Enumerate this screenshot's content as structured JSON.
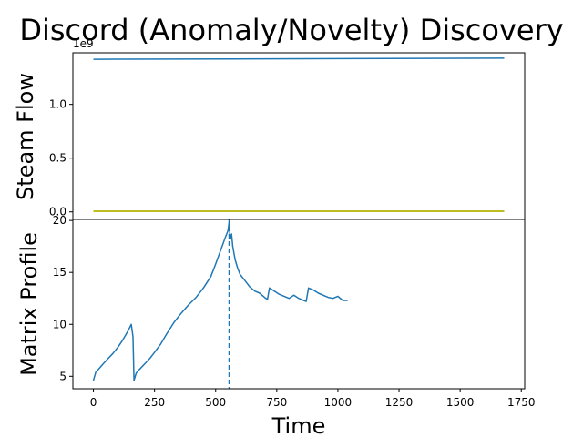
{
  "chart_data": {
    "type": "line",
    "title": "Discord (Anomaly/Novelty) Discovery",
    "subplots": [
      {
        "name": "steam-flow",
        "ylabel": "Steam Flow",
        "offset_label": "1e9",
        "xlim": [
          -84,
          1764
        ],
        "ylim": [
          -70000000.0,
          1480000000.0
        ],
        "yticks": [
          {
            "value": 0.0,
            "label": "0.0"
          },
          {
            "value": 500000000.0,
            "label": "0.5"
          },
          {
            "value": 1000000000.0,
            "label": "1.0"
          }
        ],
        "series": [
          {
            "color": "#1f77b4",
            "x": [
              0,
              1680
            ],
            "y": [
              1420000000.0,
              1430000000.0
            ]
          },
          {
            "color": "#bcbd22",
            "x": [
              0,
              1680
            ],
            "y": [
              6000000.0,
              6000000.0
            ]
          }
        ]
      },
      {
        "name": "matrix-profile",
        "ylabel": "Matrix Profile",
        "xlabel": "Time",
        "xlim": [
          -84,
          1764
        ],
        "ylim": [
          3.8,
          20.1
        ],
        "discord_x": 555,
        "discord_color": "#1f77b4",
        "xticks": [
          {
            "value": 0,
            "label": "0"
          },
          {
            "value": 250,
            "label": "250"
          },
          {
            "value": 500,
            "label": "500"
          },
          {
            "value": 750,
            "label": "750"
          },
          {
            "value": 1000,
            "label": "1000"
          },
          {
            "value": 1250,
            "label": "1250"
          },
          {
            "value": 1500,
            "label": "1500"
          },
          {
            "value": 1750,
            "label": "1750"
          }
        ],
        "yticks": [
          {
            "value": 5,
            "label": "5"
          },
          {
            "value": 10,
            "label": "10"
          },
          {
            "value": 15,
            "label": "15"
          },
          {
            "value": 20,
            "label": "20"
          }
        ],
        "series": [
          {
            "color": "#1f77b4",
            "x": [
              0,
              10,
              25,
              40,
              60,
              80,
              100,
              120,
              140,
              155,
              162,
              166,
              175,
              190,
              210,
              230,
              250,
              275,
              300,
              330,
              360,
              390,
              420,
              450,
              480,
              500,
              520,
              540,
              550,
              555,
              560,
              565,
              570,
              580,
              590,
              600,
              620,
              640,
              660,
              680,
              700,
              712,
              720,
              740,
              760,
              780,
              800,
              820,
              840,
              860,
              870,
              880,
              900,
              920,
              940,
              960,
              980,
              1000,
              1020,
              1040
            ],
            "y": [
              4.6,
              5.4,
              5.8,
              6.2,
              6.7,
              7.2,
              7.8,
              8.5,
              9.3,
              10.0,
              8.8,
              4.6,
              5.3,
              5.7,
              6.2,
              6.7,
              7.3,
              8.1,
              9.1,
              10.2,
              11.1,
              11.9,
              12.6,
              13.5,
              14.6,
              15.8,
              17.1,
              18.4,
              19.0,
              19.8,
              18.2,
              18.7,
              17.5,
              16.2,
              15.4,
              14.8,
              14.2,
              13.6,
              13.2,
              13.0,
              12.6,
              12.4,
              13.5,
              13.2,
              12.9,
              12.7,
              12.5,
              12.8,
              12.5,
              12.3,
              12.2,
              13.5,
              13.3,
              13.0,
              12.8,
              12.6,
              12.5,
              12.7,
              12.3,
              12.3
            ]
          }
        ]
      }
    ]
  }
}
